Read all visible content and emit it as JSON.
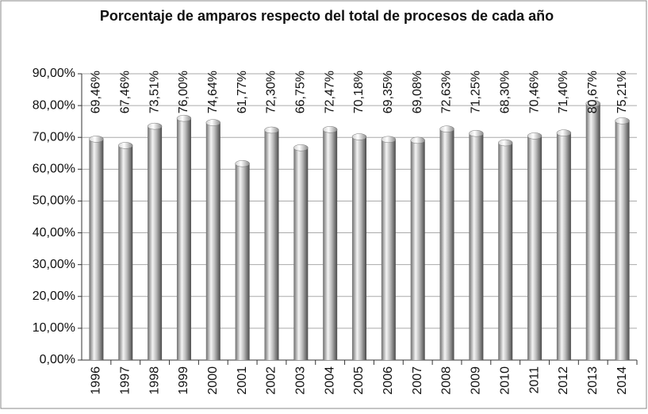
{
  "chart_data": {
    "type": "bar",
    "title": "Porcentaje de amparos respecto del total de procesos de cada año",
    "categories": [
      "1996",
      "1997",
      "1998",
      "1999",
      "2000",
      "2001",
      "2002",
      "2003",
      "2004",
      "2005",
      "2006",
      "2007",
      "2008",
      "2009",
      "2010",
      "2011",
      "2012",
      "2013",
      "2014"
    ],
    "values": [
      69.46,
      67.46,
      73.51,
      76.0,
      74.64,
      61.77,
      72.3,
      66.75,
      72.47,
      70.18,
      69.35,
      69.08,
      72.63,
      71.25,
      68.3,
      70.46,
      71.4,
      80.67,
      75.21
    ],
    "value_labels": [
      "69,46%",
      "67,46%",
      "73,51%",
      "76,00%",
      "74,64%",
      "61,77%",
      "72,30%",
      "66,75%",
      "72,47%",
      "70,18%",
      "69,35%",
      "69,08%",
      "72,63%",
      "71,25%",
      "68,30%",
      "70,46%",
      "71,40%",
      "80,67%",
      "75,21%"
    ],
    "color": "#9a9a9a",
    "ylim": [
      0,
      90
    ],
    "yticks": [
      {
        "value": 0,
        "label": "0,00%"
      },
      {
        "value": 10,
        "label": "10,00%"
      },
      {
        "value": 20,
        "label": "20,00%"
      },
      {
        "value": 30,
        "label": "30,00%"
      },
      {
        "value": 40,
        "label": "40,00%"
      },
      {
        "value": 50,
        "label": "50,00%"
      },
      {
        "value": 60,
        "label": "60,00%"
      },
      {
        "value": 70,
        "label": "70,00%"
      },
      {
        "value": 80,
        "label": "80,00%"
      },
      {
        "value": 90,
        "label": "90,00%"
      }
    ],
    "grid": true
  }
}
